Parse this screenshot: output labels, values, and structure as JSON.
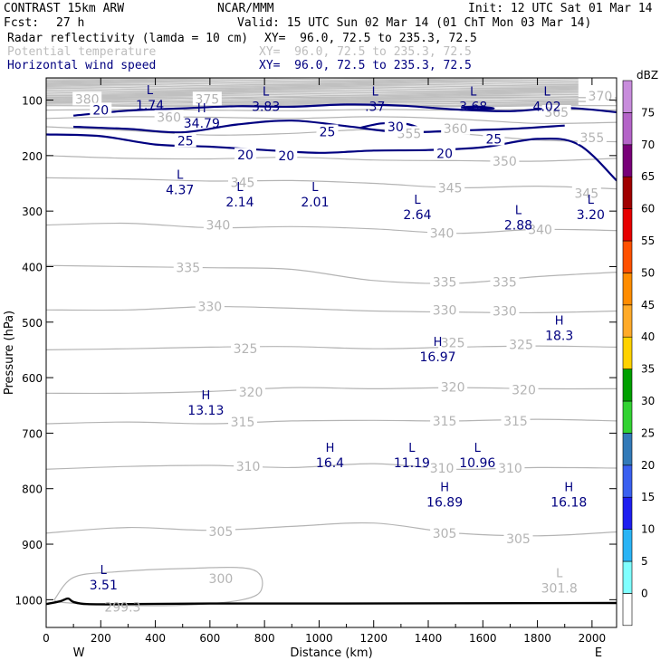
{
  "header": {
    "title": "CONTRAST 15km ARW",
    "org": "NCAR/MMM",
    "init": "Init: 12 UTC Sat 01 Mar 14",
    "fcst_label": "Fcst:",
    "fcst_value": "27 h",
    "valid": "Valid: 15 UTC Sun 02 Mar 14 (01 ChT Mon 03 Mar 14)",
    "fields": [
      {
        "name": "Radar reflectivity (lamda = 10 cm)",
        "xy": "XY=  96.0, 72.5 to 235.3, 72.5"
      },
      {
        "name": "Potential temperature",
        "xy": "XY=  96.0, 72.5 to 235.3, 72.5"
      },
      {
        "name": "Horizontal wind speed",
        "xy": "XY=  96.0, 72.5 to 235.3, 72.5"
      }
    ]
  },
  "chart_data": {
    "type": "contour",
    "xlabel": "Distance (km)",
    "ylabel": "Pressure (hPa)",
    "xlim": [
      0,
      2090
    ],
    "ylim": [
      1050,
      60
    ],
    "xticks": [
      0,
      200,
      400,
      600,
      800,
      1000,
      1200,
      1400,
      1600,
      1800,
      2000
    ],
    "yticks": [
      100,
      200,
      300,
      400,
      500,
      600,
      700,
      800,
      900,
      1000
    ],
    "x_end_labels": {
      "left": "W",
      "right": "E"
    },
    "colorbar": {
      "unit": "dBZ",
      "levels": [
        0,
        5,
        10,
        15,
        20,
        25,
        30,
        35,
        40,
        45,
        50,
        55,
        60,
        65,
        70,
        75
      ],
      "colors": [
        "#ffffff",
        "#7fffff",
        "#2ab4f5",
        "#1e1ef0",
        "#3a60f0",
        "#327ab8",
        "#32d232",
        "#00a000",
        "#ffd200",
        "#ffaa28",
        "#ff8c00",
        "#ff5000",
        "#e60000",
        "#a00000",
        "#780078",
        "#b464c8",
        "#c88cdc"
      ]
    },
    "theta_contours": [
      {
        "label": "380",
        "x": [
          0,
          300,
          600,
          900,
          1200,
          1500,
          1800,
          2090
        ],
        "p": [
          96,
          95,
          97,
          95,
          96,
          95,
          95,
          96
        ],
        "label_at": [
          {
            "x": 150,
            "p": 98
          }
        ]
      },
      {
        "label": "375",
        "x": [
          0,
          300,
          600,
          900,
          1200,
          1500,
          1800,
          2090
        ],
        "p": [
          103,
          103,
          104,
          102,
          103,
          103,
          102,
          103
        ],
        "label_at": [
          {
            "x": 590,
            "p": 98
          }
        ]
      },
      {
        "label": "370",
        "x": [
          0,
          300,
          600,
          900,
          1200,
          1500,
          1800,
          2090
        ],
        "p": [
          110,
          110,
          111,
          110,
          109,
          111,
          110,
          110
        ],
        "label_at": [
          {
            "x": 2030,
            "p": 93
          }
        ]
      },
      {
        "label": "365",
        "x": [
          0,
          300,
          600,
          900,
          1200,
          1500,
          1800,
          2090
        ],
        "p": [
          118,
          117,
          118,
          119,
          117,
          118,
          117,
          118
        ],
        "label_at": [
          {
            "x": 1870,
            "p": 122
          }
        ]
      },
      {
        "label": "360",
        "x": [
          0,
          300,
          600,
          900,
          1200,
          1500,
          1800,
          2090
        ],
        "p": [
          133,
          130,
          131,
          133,
          130,
          134,
          142,
          140
        ],
        "label_at": [
          {
            "x": 450,
            "p": 131
          },
          {
            "x": 1500,
            "p": 151
          }
        ]
      },
      {
        "label": "355",
        "x": [
          0,
          300,
          600,
          900,
          1200,
          1500,
          1800,
          2090
        ],
        "p": [
          148,
          155,
          163,
          160,
          153,
          160,
          172,
          175
        ],
        "label_at": [
          {
            "x": 1330,
            "p": 160
          },
          {
            "x": 2000,
            "p": 168
          }
        ]
      },
      {
        "label": "350",
        "x": [
          0,
          300,
          600,
          900,
          1200,
          1500,
          1800,
          2090
        ],
        "p": [
          200,
          205,
          206,
          203,
          208,
          209,
          210,
          205
        ],
        "label_at": [
          {
            "x": 1680,
            "p": 210
          }
        ]
      },
      {
        "label": "345",
        "x": [
          0,
          300,
          600,
          900,
          1200,
          1500,
          1800,
          2090
        ],
        "p": [
          240,
          242,
          246,
          245,
          250,
          258,
          255,
          260
        ],
        "label_at": [
          {
            "x": 720,
            "p": 248
          },
          {
            "x": 1480,
            "p": 258
          },
          {
            "x": 1980,
            "p": 268
          }
        ]
      },
      {
        "label": "340",
        "x": [
          0,
          300,
          600,
          900,
          1200,
          1500,
          1800,
          2090
        ],
        "p": [
          325,
          322,
          330,
          328,
          332,
          340,
          333,
          335
        ],
        "label_at": [
          {
            "x": 630,
            "p": 325
          },
          {
            "x": 1450,
            "p": 340
          },
          {
            "x": 1810,
            "p": 333
          }
        ]
      },
      {
        "label": "335",
        "x": [
          0,
          300,
          600,
          900,
          1200,
          1500,
          1800,
          2090
        ],
        "p": [
          398,
          400,
          402,
          405,
          425,
          430,
          418,
          410
        ],
        "label_at": [
          {
            "x": 520,
            "p": 402
          },
          {
            "x": 1460,
            "p": 428
          },
          {
            "x": 1680,
            "p": 428
          }
        ]
      },
      {
        "label": "330",
        "x": [
          0,
          300,
          600,
          900,
          1200,
          1500,
          1800,
          2090
        ],
        "p": [
          478,
          478,
          472,
          475,
          480,
          482,
          483,
          480
        ],
        "label_at": [
          {
            "x": 600,
            "p": 472
          },
          {
            "x": 1460,
            "p": 478
          },
          {
            "x": 1680,
            "p": 480
          }
        ]
      },
      {
        "label": "325",
        "x": [
          0,
          300,
          600,
          900,
          1200,
          1500,
          1800,
          2090
        ],
        "p": [
          550,
          548,
          545,
          544,
          548,
          545,
          543,
          545
        ],
        "label_at": [
          {
            "x": 730,
            "p": 548
          },
          {
            "x": 1490,
            "p": 537
          },
          {
            "x": 1740,
            "p": 540
          }
        ]
      },
      {
        "label": "320",
        "x": [
          0,
          300,
          600,
          900,
          1200,
          1500,
          1800,
          2090
        ],
        "p": [
          628,
          628,
          625,
          618,
          620,
          618,
          620,
          620
        ],
        "label_at": [
          {
            "x": 750,
            "p": 626
          },
          {
            "x": 1490,
            "p": 617
          },
          {
            "x": 1750,
            "p": 622
          }
        ]
      },
      {
        "label": "315",
        "x": [
          0,
          300,
          600,
          900,
          1200,
          1500,
          1800,
          2090
        ],
        "p": [
          683,
          680,
          683,
          678,
          677,
          678,
          675,
          678
        ],
        "label_at": [
          {
            "x": 720,
            "p": 680
          },
          {
            "x": 1460,
            "p": 678
          },
          {
            "x": 1720,
            "p": 678
          }
        ]
      },
      {
        "label": "310",
        "x": [
          0,
          300,
          600,
          900,
          1200,
          1500,
          1800,
          2090
        ],
        "p": [
          765,
          760,
          758,
          762,
          755,
          765,
          762,
          763
        ],
        "label_at": [
          {
            "x": 740,
            "p": 760
          },
          {
            "x": 1450,
            "p": 763
          },
          {
            "x": 1700,
            "p": 763
          }
        ]
      },
      {
        "label": "305",
        "x": [
          0,
          300,
          600,
          900,
          1200,
          1500,
          1800,
          2090
        ],
        "p": [
          880,
          870,
          875,
          868,
          862,
          880,
          885,
          878
        ],
        "label_at": [
          {
            "x": 640,
            "p": 877
          },
          {
            "x": 1460,
            "p": 880
          },
          {
            "x": 1730,
            "p": 890
          }
        ]
      },
      {
        "label": "300",
        "x": [
          30,
          100,
          250,
          500,
          750,
          790,
          720,
          500,
          250,
          60,
          30
        ],
        "p": [
          1000,
          960,
          950,
          944,
          945,
          980,
          1000,
          1010,
          1010,
          1005,
          1000
        ],
        "label_at": [
          {
            "x": 640,
            "p": 962
          }
        ]
      }
    ],
    "wind_contours": [
      {
        "label": "20",
        "x": [
          100,
          300,
          500,
          700,
          900,
          1100,
          1300,
          1500,
          1700,
          1900,
          2090
        ],
        "p": [
          128,
          119,
          115,
          111,
          112,
          108,
          110,
          117,
          120,
          114,
          122
        ],
        "label_at": [
          {
            "x": 200,
            "p": 118
          }
        ]
      },
      {
        "label": "25",
        "x": [
          100,
          300,
          500,
          700,
          900,
          1100,
          1300,
          1500,
          1700,
          1900
        ],
        "p": [
          148,
          152,
          158,
          144,
          137,
          147,
          158,
          155,
          152,
          146
        ],
        "label_at": [
          {
            "x": 510,
            "p": 173
          },
          {
            "x": 1030,
            "p": 157
          },
          {
            "x": 1640,
            "p": 170
          }
        ]
      },
      {
        "label": "30",
        "x": [
          1150,
          1230,
          1320,
          1380
        ],
        "p": [
          150,
          142,
          143,
          153
        ],
        "label_at": [
          {
            "x": 1280,
            "p": 148
          }
        ]
      },
      {
        "label": "20",
        "x": [
          0,
          200,
          400,
          600,
          800,
          1000,
          1200,
          1400,
          1600,
          1800,
          1950,
          2090
        ],
        "p": [
          162,
          165,
          180,
          184,
          190,
          195,
          191,
          190,
          185,
          170,
          180,
          245
        ],
        "label_at": [
          {
            "x": 730,
            "p": 199
          },
          {
            "x": 880,
            "p": 200
          },
          {
            "x": 1460,
            "p": 196
          }
        ]
      },
      {
        "label": "",
        "x": [
          1520,
          1580,
          1640,
          1580,
          1520
        ],
        "p": [
          113,
          112,
          115,
          116,
          113
        ],
        "label_at": []
      }
    ],
    "annotations": [
      {
        "type": "L",
        "value": "1.74",
        "x": 380,
        "p": 93
      },
      {
        "type": "H",
        "value": "34.79",
        "x": 570,
        "p": 125
      },
      {
        "type": "L",
        "value": "3.83",
        "x": 805,
        "p": 95
      },
      {
        "type": "L",
        "value": ".37",
        "x": 1205,
        "p": 95
      },
      {
        "type": "L",
        "value": "3.68",
        "x": 1565,
        "p": 95
      },
      {
        "type": "L",
        "value": "4.02",
        "x": 1835,
        "p": 95
      },
      {
        "type": "L",
        "value": "4.37",
        "x": 490,
        "p": 245
      },
      {
        "type": "L",
        "value": "2.14",
        "x": 710,
        "p": 267
      },
      {
        "type": "L",
        "value": "2.01",
        "x": 985,
        "p": 267
      },
      {
        "type": "L",
        "value": "2.64",
        "x": 1360,
        "p": 290
      },
      {
        "type": "L",
        "value": "2.88",
        "x": 1730,
        "p": 309
      },
      {
        "type": "L",
        "value": "3.20",
        "x": 1995,
        "p": 290
      },
      {
        "type": "H",
        "value": "18.3",
        "x": 1880,
        "p": 508
      },
      {
        "type": "H",
        "value": "16.97",
        "x": 1435,
        "p": 546
      },
      {
        "type": "H",
        "value": "13.13",
        "x": 585,
        "p": 642
      },
      {
        "type": "H",
        "value": "16.4",
        "x": 1040,
        "p": 737
      },
      {
        "type": "L",
        "value": "11.19",
        "x": 1340,
        "p": 737
      },
      {
        "type": "L",
        "value": "10.96",
        "x": 1580,
        "p": 737
      },
      {
        "type": "H",
        "value": "16.89",
        "x": 1460,
        "p": 808
      },
      {
        "type": "H",
        "value": "16.18",
        "x": 1915,
        "p": 808
      },
      {
        "type": "L",
        "value": "3.51",
        "x": 210,
        "p": 957
      },
      {
        "type": "",
        "value": "299.3",
        "x": 280,
        "p": 997,
        "muted": true
      },
      {
        "type": "L",
        "value": "301.8",
        "x": 1880,
        "p": 963,
        "muted": true
      }
    ],
    "ground_surface": {
      "x": [
        0,
        50,
        80,
        100,
        150,
        300,
        600,
        1000,
        2090
      ],
      "p": [
        1008,
        1003,
        998,
        1004,
        1008,
        1008,
        1007,
        1007,
        1006
      ]
    }
  }
}
